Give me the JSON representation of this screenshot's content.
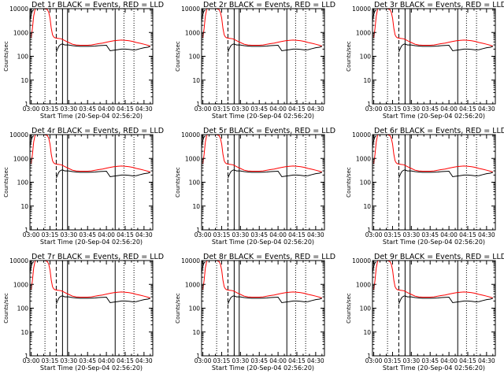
{
  "page_title": "",
  "chart_data": [
    {
      "type": "line",
      "detector": "1r",
      "title": "Det 1r BLACK = Events, RED = LLD",
      "xlabel": "Start Time (20-Sep-04 02:56:20)",
      "ylabel": "Counts/sec",
      "xlim": [
        "02:59:00",
        "04:37:00"
      ],
      "ylim": [
        1,
        10000
      ],
      "yscale": "log",
      "x_ticks": [
        "03:00",
        "03:15",
        "03:30",
        "03:45",
        "04:00",
        "04:15",
        "04:30"
      ],
      "y_ticks": [
        "1",
        "10",
        "100",
        "1000",
        "10000"
      ],
      "legend": "in title",
      "series": [
        {
          "name": "BLACK = Events",
          "color": "#000000"
        },
        {
          "name": "RED = LLD",
          "color": "#ff0000"
        }
      ]
    },
    {
      "type": "line",
      "detector": "2r",
      "title": "Det 2r BLACK = Events, RED = LLD",
      "xlabel": "Start Time (20-Sep-04 02:56:20)",
      "ylabel": "Counts/sec",
      "xlim": [
        "02:59:00",
        "04:37:00"
      ],
      "ylim": [
        1,
        10000
      ],
      "yscale": "log",
      "x_ticks": [
        "03:00",
        "03:15",
        "03:30",
        "03:45",
        "04:00",
        "04:15",
        "04:30"
      ],
      "y_ticks": [
        "1",
        "10",
        "100",
        "1000",
        "10000"
      ],
      "legend": "in title",
      "series": [
        {
          "name": "BLACK = Events",
          "color": "#000000"
        },
        {
          "name": "RED = LLD",
          "color": "#ff0000"
        }
      ]
    },
    {
      "type": "line",
      "detector": "3r",
      "title": "Det 3r BLACK = Events, RED = LLD",
      "xlabel": "Start Time (20-Sep-04 02:56:20)",
      "ylabel": "Counts/sec",
      "xlim": [
        "02:59:00",
        "04:37:00"
      ],
      "ylim": [
        1,
        10000
      ],
      "yscale": "log",
      "x_ticks": [
        "03:00",
        "03:15",
        "03:30",
        "03:45",
        "04:00",
        "04:15",
        "04:30"
      ],
      "y_ticks": [
        "1",
        "10",
        "100",
        "1000",
        "10000"
      ],
      "legend": "in title",
      "series": [
        {
          "name": "BLACK = Events",
          "color": "#000000"
        },
        {
          "name": "RED = LLD",
          "color": "#ff0000"
        }
      ]
    },
    {
      "type": "line",
      "detector": "4r",
      "title": "Det 4r BLACK = Events, RED = LLD",
      "xlabel": "Start Time (20-Sep-04 02:56:20)",
      "ylabel": "Counts/sec",
      "xlim": [
        "02:59:00",
        "04:37:00"
      ],
      "ylim": [
        1,
        10000
      ],
      "yscale": "log",
      "x_ticks": [
        "03:00",
        "03:15",
        "03:30",
        "03:45",
        "04:00",
        "04:15",
        "04:30"
      ],
      "y_ticks": [
        "1",
        "10",
        "100",
        "1000",
        "10000"
      ],
      "legend": "in title",
      "series": [
        {
          "name": "BLACK = Events",
          "color": "#000000"
        },
        {
          "name": "RED = LLD",
          "color": "#ff0000"
        }
      ]
    },
    {
      "type": "line",
      "detector": "5r",
      "title": "Det 5r BLACK = Events, RED = LLD",
      "xlabel": "Start Time (20-Sep-04 02:56:20)",
      "ylabel": "Counts/sec",
      "xlim": [
        "02:59:00",
        "04:37:00"
      ],
      "ylim": [
        1,
        10000
      ],
      "yscale": "log",
      "x_ticks": [
        "03:00",
        "03:15",
        "03:30",
        "03:45",
        "04:00",
        "04:15",
        "04:30"
      ],
      "y_ticks": [
        "1",
        "10",
        "100",
        "1000",
        "10000"
      ],
      "legend": "in title",
      "series": [
        {
          "name": "BLACK = Events",
          "color": "#000000"
        },
        {
          "name": "RED = LLD",
          "color": "#ff0000"
        }
      ]
    },
    {
      "type": "line",
      "detector": "6r",
      "title": "Det 6r BLACK = Events, RED = LLD",
      "xlabel": "Start Time (20-Sep-04 02:56:20)",
      "ylabel": "Counts/sec",
      "xlim": [
        "02:59:00",
        "04:37:00"
      ],
      "ylim": [
        1,
        10000
      ],
      "yscale": "log",
      "x_ticks": [
        "03:00",
        "03:15",
        "03:30",
        "03:45",
        "04:00",
        "04:15",
        "04:30"
      ],
      "y_ticks": [
        "1",
        "10",
        "100",
        "1000",
        "10000"
      ],
      "legend": "in title",
      "series": [
        {
          "name": "BLACK = Events",
          "color": "#000000"
        },
        {
          "name": "RED = LLD",
          "color": "#ff0000"
        }
      ]
    },
    {
      "type": "line",
      "detector": "7r",
      "title": "Det 7r BLACK = Events, RED = LLD",
      "xlabel": "Start Time (20-Sep-04 02:56:20)",
      "ylabel": "Counts/sec",
      "xlim": [
        "02:59:00",
        "04:37:00"
      ],
      "ylim": [
        1,
        10000
      ],
      "yscale": "log",
      "x_ticks": [
        "03:00",
        "03:15",
        "03:30",
        "03:45",
        "04:00",
        "04:15",
        "04:30"
      ],
      "y_ticks": [
        "1",
        "10",
        "100",
        "1000",
        "10000"
      ],
      "legend": "in title",
      "series": [
        {
          "name": "BLACK = Events",
          "color": "#000000"
        },
        {
          "name": "RED = LLD",
          "color": "#ff0000"
        }
      ]
    },
    {
      "type": "line",
      "detector": "8r",
      "title": "Det 8r BLACK = Events, RED = LLD",
      "xlabel": "Start Time (20-Sep-04 02:56:20)",
      "ylabel": "Counts/sec",
      "xlim": [
        "02:59:00",
        "04:37:00"
      ],
      "ylim": [
        1,
        10000
      ],
      "yscale": "log",
      "x_ticks": [
        "03:00",
        "03:15",
        "03:30",
        "03:45",
        "04:00",
        "04:15",
        "04:30"
      ],
      "y_ticks": [
        "1",
        "10",
        "100",
        "1000",
        "10000"
      ],
      "legend": "in title",
      "series": [
        {
          "name": "BLACK = Events",
          "color": "#000000"
        },
        {
          "name": "RED = LLD",
          "color": "#ff0000"
        }
      ]
    },
    {
      "type": "line",
      "detector": "9r",
      "title": "Det 9r BLACK = Events, RED = LLD",
      "xlabel": "Start Time (20-Sep-04 02:56:20)",
      "ylabel": "Counts/sec",
      "xlim": [
        "02:59:00",
        "04:37:00"
      ],
      "ylim": [
        1,
        10000
      ],
      "yscale": "log",
      "x_ticks": [
        "03:00",
        "03:15",
        "03:30",
        "03:45",
        "04:00",
        "04:15",
        "04:30"
      ],
      "y_ticks": [
        "1",
        "10",
        "100",
        "1000",
        "10000"
      ],
      "legend": "in title",
      "series": [
        {
          "name": "BLACK = Events",
          "color": "#000000"
        },
        {
          "name": "RED = LLD",
          "color": "#ff0000"
        }
      ]
    }
  ],
  "shared": {
    "red_lld": {
      "x": [
        "03:00",
        "03:01",
        "03:02",
        "03:03",
        "03:04",
        "03:05",
        "03:06",
        "03:07",
        "03:08",
        "03:09",
        "03:10",
        "03:11",
        "03:12",
        "03:13",
        "03:14",
        "03:15",
        "03:16",
        "03:17",
        "03:18",
        "03:19",
        "03:20",
        "03:22",
        "03:24",
        "03:26",
        "03:28",
        "03:30",
        "03:33",
        "03:36",
        "03:39",
        "03:42",
        "03:45",
        "03:48",
        "03:51",
        "03:54",
        "03:57",
        "04:00",
        "04:03",
        "04:06",
        "04:09",
        "04:12",
        "04:15",
        "04:18",
        "04:21",
        "04:24",
        "04:27",
        "04:30",
        "04:33",
        "04:35"
      ],
      "y": [
        600,
        1500,
        5000,
        9000,
        11000,
        12000,
        12000,
        11500,
        11000,
        10500,
        10000,
        10000,
        9500,
        9000,
        7000,
        4000,
        1500,
        800,
        650,
        600,
        580,
        560,
        540,
        480,
        420,
        380,
        320,
        300,
        290,
        290,
        290,
        300,
        320,
        340,
        360,
        390,
        420,
        450,
        470,
        480,
        470,
        450,
        420,
        380,
        350,
        320,
        290,
        270
      ]
    },
    "black_events": {
      "x": [
        "03:20",
        "03:21",
        "03:22",
        "03:23",
        "03:24",
        "03:25",
        "03:26",
        "03:27",
        "03:28",
        "03:29",
        "03:30",
        "03:31",
        "03:33",
        "03:36",
        "03:39",
        "03:42",
        "03:45",
        "03:48",
        "03:51",
        "03:54",
        "03:57",
        "04:00",
        "04:03",
        "04:06",
        "04:09",
        "04:12",
        "04:15",
        "04:18",
        "04:21",
        "04:24",
        "04:27",
        "04:30",
        "04:33",
        "04:35"
      ],
      "y": [
        150,
        200,
        260,
        300,
        320,
        330,
        310,
        300,
        300,
        300,
        300,
        290,
        280,
        270,
        260,
        260,
        260,
        265,
        270,
        280,
        285,
        290,
        170,
        180,
        190,
        200,
        200,
        195,
        185,
        190,
        210,
        230,
        240,
        260
      ]
    },
    "early_black": {
      "x": [
        "02:59",
        "03:00",
        "03:01",
        "03:02"
      ],
      "y": [
        3000,
        6000,
        8000,
        9000
      ]
    },
    "vertical_markers": [
      {
        "time": "03:11",
        "style": "dotted"
      },
      {
        "time": "03:20",
        "style": "dashed"
      },
      {
        "time": "03:25",
        "style": "solid"
      },
      {
        "time": "03:29",
        "style": "solid"
      },
      {
        "time": "04:07",
        "style": "solid"
      },
      {
        "time": "04:14",
        "style": "dotted"
      },
      {
        "time": "04:22",
        "style": "dotted"
      }
    ]
  }
}
